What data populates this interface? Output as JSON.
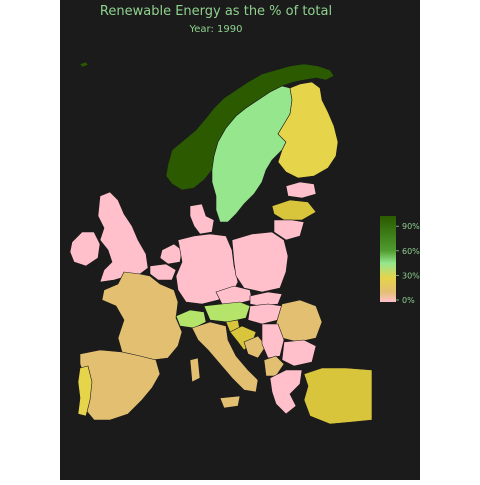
{
  "title": "Renewable Energy as the % of total",
  "subtitle": "Year: 1990",
  "colors": {
    "panel_bg": "#1b1b1b",
    "text_green": "#8fd18f",
    "sea": "#1b1b1b",
    "border": "#222222"
  },
  "legend": {
    "ticks": [
      "90%",
      "60%",
      "30%",
      "0%"
    ],
    "tick_values": [
      90,
      60,
      30,
      0
    ],
    "gradient": [
      {
        "value": 0,
        "color": "#ffc0cb"
      },
      {
        "value": 12,
        "color": "#e3bf72"
      },
      {
        "value": 28,
        "color": "#e6d44a"
      },
      {
        "value": 45,
        "color": "#96e68e"
      },
      {
        "value": 60,
        "color": "#4f9b2e"
      },
      {
        "value": 100,
        "color": "#2b5a00"
      }
    ]
  },
  "regions": [
    {
      "name": "Norway",
      "level": "90%+"
    },
    {
      "name": "Sweden",
      "level": "~50%"
    },
    {
      "name": "Finland",
      "level": "~25%"
    },
    {
      "name": "Latvia",
      "level": "~30%"
    },
    {
      "name": "Austria",
      "level": "~45%"
    },
    {
      "name": "Switzerland",
      "level": "~45%"
    },
    {
      "name": "Turkey",
      "level": "~25%"
    },
    {
      "name": "Portugal",
      "level": "~25%"
    },
    {
      "name": "Croatia",
      "level": "~25%"
    },
    {
      "name": "France",
      "level": "~10%"
    },
    {
      "name": "Spain",
      "level": "~10%"
    },
    {
      "name": "Italy",
      "level": "~10%"
    },
    {
      "name": "Romania",
      "level": "~10%"
    },
    {
      "name": "United Kingdom",
      "level": "~0%"
    },
    {
      "name": "Germany",
      "level": "~2%"
    },
    {
      "name": "Poland",
      "level": "~2%"
    }
  ]
}
